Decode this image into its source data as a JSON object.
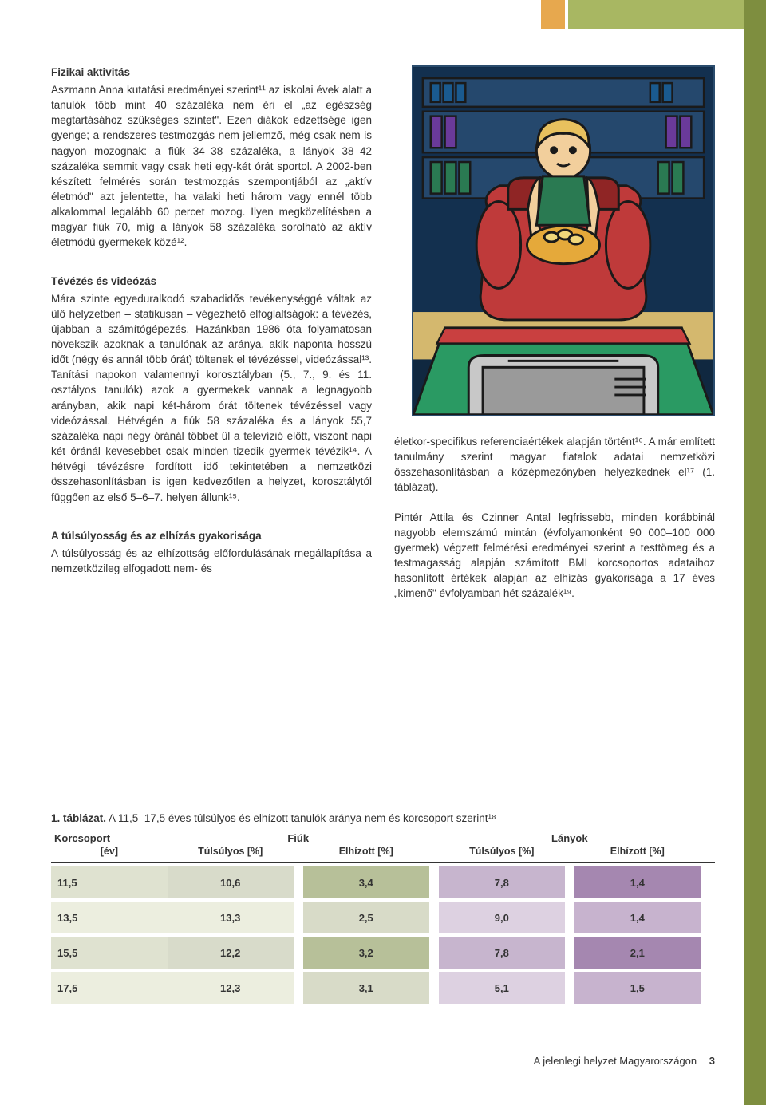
{
  "section1": {
    "heading": "Fizikai aktivitás",
    "body": "Aszmann Anna kutatási eredményei szerint¹¹ az iskolai évek alatt a tanulók több mint 40 százaléka nem éri el „az egészség megtartásához szükséges szintet\". Ezen diákok edzettsége igen gyenge; a rendszeres testmozgás nem jellemző, még csak nem is nagyon mozognak: a fiúk 34–38 százaléka, a lányok 38–42 százaléka semmit vagy csak heti egy-két órát sportol. A 2002-ben készített felmérés során testmozgás szempontjából az „aktív életmód\" azt jelentette, ha valaki heti három vagy ennél több alkalommal legalább 60 percet mozog. Ilyen megközelítésben a magyar fiúk 70, míg a lányok 58 százaléka sorolható az aktív életmódú gyermekek közé¹²."
  },
  "section2": {
    "heading": "Tévézés és videózás",
    "body": "Mára szinte egyeduralkodó szabadidős tevékenységgé váltak az ülő helyzetben – statikusan – végezhető elfoglaltságok: a tévézés, újabban a számítógépezés. Hazánkban 1986 óta folyamatosan növekszik azoknak a tanulónak az aránya, akik naponta hosszú időt (négy és annál több órát) töltenek el tévézéssel, videózással¹³. Tanítási napokon valamennyi korosztályban (5., 7., 9. és 11. osztályos tanulók) azok a gyermekek vannak a legnagyobb arányban, akik napi két-három órát töltenek tévézéssel vagy videózással. Hétvégén a fiúk 58 százaléka és a lányok 55,7 százaléka napi négy óránál többet ül a televízió előtt, viszont napi két óránál kevesebbet csak minden tizedik gyermek tévézik¹⁴. A hétvégi tévézésre fordított idő tekintetében a nemzetközi összehasonlításban is igen kedvezőtlen a helyzet, korosztálytól függően az első 5–6–7. helyen állunk¹⁵."
  },
  "section3": {
    "heading": "A túlsúlyosság és az elhízás gyakorisága",
    "body_left": "A túlsúlyosság és az elhízottság előfordulásának megállapítása a nemzetközileg elfogadott nem- és",
    "body_right1": "életkor-specifikus referenciaértékek alapján történt¹⁶. A már említett tanulmány szerint magyar fiatalok adatai nemzetközi összehasonlításban a középmezőnyben helyezkednek el¹⁷ (1. táblázat).",
    "body_right2": "Pintér Attila és Czinner Antal legfrissebb, minden korábbinál nagyobb elemszámú mintán (évfolyamonként 90 000–100 000 gyermek) végzett felmérési eredményei szerint a testtömeg és a testmagasság alapján számított BMI korcsoportos adataihoz hasonlított értékek alapján az elhízás gyakorisága a 17 éves „kimenő\" évfolyamban hét százalék¹⁹."
  },
  "table": {
    "title_bold": "1. táblázat.",
    "title_rest": " A 11,5–17,5 éves túlsúlyos és elhízott tanulók aránya nem és korcsoport szerint¹⁸",
    "header_korcsoport": "Korcsoport",
    "header_ev": "[év]",
    "header_fiuk": "Fiúk",
    "header_lanyok": "Lányok",
    "sub_tulsulyos": "Túlsúlyos [%]",
    "sub_elhizott": "Elhízott [%]",
    "colors": {
      "age_bg_alt": [
        "#dfe2d0",
        "#eceedf"
      ],
      "boys_overweight": [
        "#d8dbca",
        "#eceedf",
        "#d8dbca",
        "#eceedf"
      ],
      "boys_obese": [
        "#b7c099",
        "#d8dbc8",
        "#b7c099",
        "#d8dbc8"
      ],
      "girls_overweight": [
        "#c7b5ce",
        "#ddd1e1",
        "#c7b5ce",
        "#ddd1e1"
      ],
      "girls_obese": [
        "#a587b0",
        "#c7b3ce",
        "#a587b0",
        "#c7b3ce"
      ]
    },
    "rows": [
      {
        "age": "11,5",
        "b_o": "10,6",
        "b_e": "3,4",
        "g_o": "7,8",
        "g_e": "1,4"
      },
      {
        "age": "13,5",
        "b_o": "13,3",
        "b_e": "2,5",
        "g_o": "9,0",
        "g_e": "1,4"
      },
      {
        "age": "15,5",
        "b_o": "12,2",
        "b_e": "3,2",
        "g_o": "7,8",
        "g_e": "2,1"
      },
      {
        "age": "17,5",
        "b_o": "12,3",
        "b_e": "3,1",
        "g_o": "5,1",
        "g_e": "1,5"
      }
    ]
  },
  "footer": {
    "text": "A jelenlegi helyzet Magyarországon",
    "page": "3"
  },
  "illustration": {
    "colors": {
      "wall": "#13304f",
      "shelf": "#2a527a",
      "chair": "#bf3a3a",
      "chair_shadow": "#8f2525",
      "skin": "#f2cf9c",
      "hair": "#e8c15e",
      "bowl": "#e5a93a",
      "rug": "#2a9a63",
      "rug_border": "#c94040",
      "tv": "#c8c8c8",
      "floor": "#d4b86e",
      "outline": "#1a1a1a"
    }
  }
}
